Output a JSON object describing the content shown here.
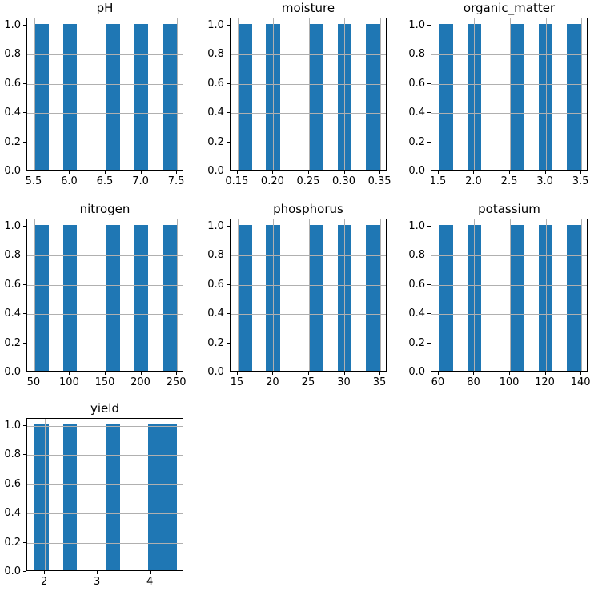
{
  "figure": {
    "background": "#ffffff",
    "bar_color": "#1f77b4",
    "grid_color": "#b0b0b0",
    "spine_color": "#000000",
    "text_color": "#000000",
    "grid": true,
    "legend": "none",
    "ylim": [
      0,
      1.05
    ],
    "y_ticks": [
      {
        "v": 0.0,
        "label": "0.0"
      },
      {
        "v": 0.2,
        "label": "0.2"
      },
      {
        "v": 0.4,
        "label": "0.4"
      },
      {
        "v": 0.6,
        "label": "0.6"
      },
      {
        "v": 0.8,
        "label": "0.8"
      },
      {
        "v": 1.0,
        "label": "1.0"
      }
    ]
  },
  "chart_data": [
    {
      "type": "bar",
      "subtype": "histogram",
      "title": "pH",
      "values": [
        5.5,
        6.0,
        6.5,
        7.0,
        7.5
      ],
      "bins": 10,
      "bin_counts": [
        1,
        0,
        1,
        0,
        0,
        1,
        0,
        1,
        0,
        1
      ],
      "xlim": [
        5.4,
        7.6
      ],
      "x_ticks": [
        {
          "v": 5.5,
          "label": "5.5"
        },
        {
          "v": 6.0,
          "label": "6.0"
        },
        {
          "v": 6.5,
          "label": "6.5"
        },
        {
          "v": 7.0,
          "label": "7.0"
        },
        {
          "v": 7.5,
          "label": "7.5"
        }
      ]
    },
    {
      "type": "bar",
      "subtype": "histogram",
      "title": "moisture",
      "values": [
        0.15,
        0.2,
        0.25,
        0.3,
        0.35
      ],
      "bins": 10,
      "bin_counts": [
        1,
        0,
        1,
        0,
        0,
        1,
        0,
        1,
        0,
        1
      ],
      "xlim": [
        0.14,
        0.36
      ],
      "x_ticks": [
        {
          "v": 0.15,
          "label": "0.15"
        },
        {
          "v": 0.2,
          "label": "0.20"
        },
        {
          "v": 0.25,
          "label": "0.25"
        },
        {
          "v": 0.3,
          "label": "0.30"
        },
        {
          "v": 0.35,
          "label": "0.35"
        }
      ]
    },
    {
      "type": "bar",
      "subtype": "histogram",
      "title": "organic_matter",
      "values": [
        1.5,
        2.0,
        2.5,
        3.0,
        3.5
      ],
      "bins": 10,
      "bin_counts": [
        1,
        0,
        1,
        0,
        0,
        1,
        0,
        1,
        0,
        1
      ],
      "xlim": [
        1.4,
        3.6
      ],
      "x_ticks": [
        {
          "v": 1.5,
          "label": "1.5"
        },
        {
          "v": 2.0,
          "label": "2.0"
        },
        {
          "v": 2.5,
          "label": "2.5"
        },
        {
          "v": 3.0,
          "label": "3.0"
        },
        {
          "v": 3.5,
          "label": "3.5"
        }
      ]
    },
    {
      "type": "bar",
      "subtype": "histogram",
      "title": "nitrogen",
      "values": [
        50,
        100,
        150,
        200,
        250
      ],
      "bins": 10,
      "bin_counts": [
        1,
        0,
        1,
        0,
        0,
        1,
        0,
        1,
        0,
        1
      ],
      "xlim": [
        40,
        260
      ],
      "x_ticks": [
        {
          "v": 50,
          "label": "50"
        },
        {
          "v": 100,
          "label": "100"
        },
        {
          "v": 150,
          "label": "150"
        },
        {
          "v": 200,
          "label": "200"
        },
        {
          "v": 250,
          "label": "250"
        }
      ]
    },
    {
      "type": "bar",
      "subtype": "histogram",
      "title": "phosphorus",
      "values": [
        15,
        20,
        25,
        30,
        35
      ],
      "bins": 10,
      "bin_counts": [
        1,
        0,
        1,
        0,
        0,
        1,
        0,
        1,
        0,
        1
      ],
      "xlim": [
        14,
        36
      ],
      "x_ticks": [
        {
          "v": 15,
          "label": "15"
        },
        {
          "v": 20,
          "label": "20"
        },
        {
          "v": 25,
          "label": "25"
        },
        {
          "v": 30,
          "label": "30"
        },
        {
          "v": 35,
          "label": "35"
        }
      ]
    },
    {
      "type": "bar",
      "subtype": "histogram",
      "title": "potassium",
      "values": [
        60,
        80,
        100,
        120,
        140
      ],
      "bins": 10,
      "bin_counts": [
        1,
        0,
        1,
        0,
        0,
        1,
        0,
        1,
        0,
        1
      ],
      "xlim": [
        56,
        144
      ],
      "x_ticks": [
        {
          "v": 60,
          "label": "60"
        },
        {
          "v": 80,
          "label": "80"
        },
        {
          "v": 100,
          "label": "100"
        },
        {
          "v": 120,
          "label": "120"
        },
        {
          "v": 140,
          "label": "140"
        }
      ]
    },
    {
      "type": "bar",
      "subtype": "histogram",
      "title": "yield",
      "values": [
        1.8,
        2.5,
        3.2,
        4.1,
        4.5
      ],
      "bins": 10,
      "bin_counts": [
        1,
        0,
        1,
        0,
        0,
        1,
        0,
        0,
        1,
        1
      ],
      "xlim": [
        1.665,
        4.635
      ],
      "x_ticks": [
        {
          "v": 2,
          "label": "2"
        },
        {
          "v": 3,
          "label": "3"
        },
        {
          "v": 4,
          "label": "4"
        }
      ]
    }
  ]
}
